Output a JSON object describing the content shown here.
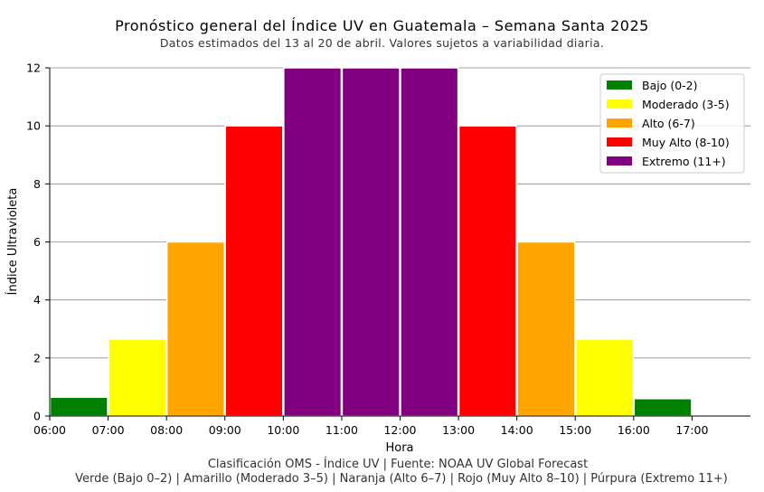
{
  "chart_data": {
    "type": "bar",
    "title": "Pronóstico general del Índice UV en Guatemala – Semana Santa 2025",
    "subtitle": "Datos estimados del 13 al 20 de abril. Valores sujetos a variabilidad diaria.",
    "xlabel": "Hora",
    "ylabel": "Índice Ultravioleta",
    "ylim": [
      0,
      12
    ],
    "yticks": [
      "0",
      "2",
      "4",
      "6",
      "8",
      "10",
      "12"
    ],
    "xticks": [
      "06:00",
      "07:00",
      "08:00",
      "09:00",
      "10:00",
      "11:00",
      "12:00",
      "13:00",
      "14:00",
      "15:00",
      "16:00",
      "17:00"
    ],
    "categories": [
      "06:00",
      "07:00",
      "08:00",
      "09:00",
      "10:00",
      "11:00",
      "12:00",
      "13:00",
      "14:00",
      "15:00",
      "16:00"
    ],
    "values": [
      0.65,
      2.65,
      6.0,
      10.0,
      12.0,
      12.0,
      12.0,
      10.0,
      6.0,
      2.65,
      0.6
    ],
    "bar_categories": [
      "Bajo",
      "Moderado",
      "Alto",
      "Muy Alto",
      "Extremo",
      "Extremo",
      "Extremo",
      "Muy Alto",
      "Alto",
      "Moderado",
      "Bajo"
    ],
    "grid": "horizontal",
    "legend_position": "top-right",
    "legend": [
      {
        "label": "Bajo (0-2)",
        "key": "Bajo",
        "color": "#008000"
      },
      {
        "label": "Moderado (3-5)",
        "key": "Moderado",
        "color": "#ffff00"
      },
      {
        "label": "Alto (6-7)",
        "key": "Alto",
        "color": "#ffa500"
      },
      {
        "label": "Muy Alto (8-10)",
        "key": "Muy Alto",
        "color": "#ff0000"
      },
      {
        "label": "Extremo (11+)",
        "key": "Extremo",
        "color": "#800080"
      }
    ]
  },
  "captions": {
    "line1": "Clasificación OMS - Índice UV | Fuente: NOAA UV Global Forecast",
    "line2": "Verde (Bajo 0–2) | Amarillo (Moderado 3–5) | Naranja (Alto 6–7) | Rojo (Muy Alto 8–10) | Púrpura (Extremo 11+)"
  }
}
